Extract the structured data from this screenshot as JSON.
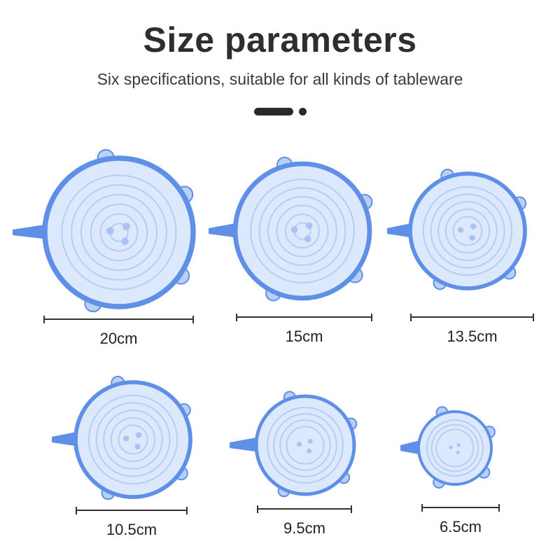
{
  "header": {
    "title": "Size parameters",
    "subtitle": "Six specifications, suitable for all kinds of tableware"
  },
  "colors": {
    "lid_fill": "#dce8fb",
    "lid_rim": "#5f8fe6",
    "title": "#2e2e2e"
  },
  "lids": [
    {
      "size_label": "20cm"
    },
    {
      "size_label": "15cm"
    },
    {
      "size_label": "13.5cm"
    },
    {
      "size_label": "10.5cm"
    },
    {
      "size_label": "9.5cm"
    },
    {
      "size_label": "6.5cm"
    }
  ]
}
